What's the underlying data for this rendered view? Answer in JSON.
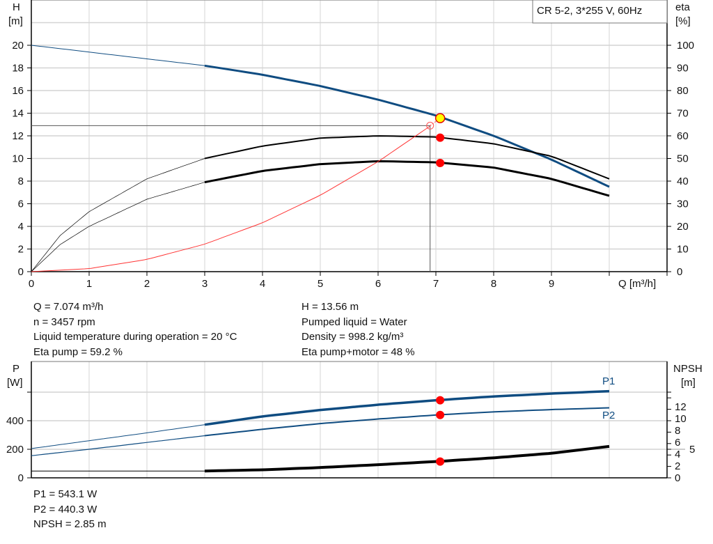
{
  "chart_data": [
    {
      "type": "line",
      "legend": "CR 5-2, 3*255 V, 60Hz",
      "xlabel": "Q [m³/h]",
      "ylabel_left": [
        "H",
        "[m]"
      ],
      "ylabel_right": [
        "eta",
        "[%]"
      ],
      "xlim": [
        0,
        11
      ],
      "ylim_left": [
        0,
        24
      ],
      "ylim_right": [
        0,
        120
      ],
      "xticks": [
        0,
        1,
        2,
        3,
        4,
        5,
        6,
        7,
        8,
        9
      ],
      "yticks_left": [
        0,
        2,
        4,
        6,
        8,
        10,
        12,
        14,
        16,
        18,
        20
      ],
      "yticks_right": [
        0,
        10,
        20,
        30,
        40,
        50,
        60,
        70,
        80,
        90,
        100
      ],
      "grid": true,
      "series": [
        {
          "key": "H",
          "axis": "left",
          "color": "#0f4c81",
          "x": [
            0,
            1,
            2,
            3,
            4,
            5,
            6,
            7,
            8,
            9,
            10
          ],
          "y": [
            20,
            19.4,
            18.8,
            18.2,
            17.4,
            16.4,
            15.2,
            13.8,
            12.0,
            9.9,
            7.5
          ]
        },
        {
          "key": "eta_pump",
          "axis": "right",
          "color": "#000000",
          "x": [
            0,
            0.5,
            1,
            2,
            3,
            4,
            5,
            6,
            7,
            8,
            9,
            10
          ],
          "y": [
            0,
            16,
            26.5,
            41,
            50,
            55.5,
            59,
            60,
            59.5,
            56.5,
            51,
            41
          ]
        },
        {
          "key": "eta_total",
          "axis": "right",
          "color": "#000000",
          "x": [
            0,
            0.5,
            1,
            2,
            3,
            4,
            5,
            6,
            7,
            8,
            9,
            10
          ],
          "y": [
            0,
            12,
            20,
            32,
            39.5,
            44.5,
            47.5,
            48.8,
            48.3,
            46,
            41,
            33.5
          ]
        },
        {
          "key": "system",
          "axis": "left",
          "color": "#ff3333",
          "x": [
            0,
            1,
            2,
            3,
            4,
            5,
            6,
            6.9
          ],
          "y": [
            0,
            0.27,
            1.08,
            2.43,
            4.32,
            6.75,
            9.72,
            12.86
          ]
        }
      ],
      "duty_point": {
        "q": 7.074,
        "h": 13.56,
        "eta_pump": 59.2,
        "eta_total": 48
      },
      "requested_point": {
        "q": 6.9,
        "h": 12.9
      }
    },
    {
      "type": "line",
      "ylabel_left": [
        "P",
        "[W]"
      ],
      "ylabel_right": [
        "NPSH",
        "[m]"
      ],
      "xlim": [
        0,
        11
      ],
      "ylim_left": [
        0,
        815
      ],
      "yticks_left": [
        0,
        200,
        400
      ],
      "yticks_right": [
        0,
        2,
        4,
        5,
        6,
        8,
        10,
        12
      ],
      "grid": true,
      "series": [
        {
          "key": "P1",
          "name": "P1",
          "axis": "left",
          "color": "#0f4c81",
          "x": [
            0,
            1,
            2,
            3,
            4,
            5,
            6,
            7,
            8,
            9,
            10
          ],
          "y": [
            205,
            260,
            315,
            372,
            430,
            475,
            512,
            543,
            570,
            590,
            607
          ]
        },
        {
          "key": "P2",
          "name": "P2",
          "axis": "left",
          "color": "#0f4c81",
          "x": [
            0,
            1,
            2,
            3,
            4,
            5,
            6,
            7,
            8,
            9,
            10
          ],
          "y": [
            155,
            200,
            248,
            295,
            340,
            380,
            412,
            440,
            462,
            478,
            490
          ]
        },
        {
          "key": "NPSH",
          "axis": "right",
          "color": "#000000",
          "x": [
            0,
            1,
            2,
            3,
            4,
            5,
            6,
            7,
            8,
            9,
            10
          ],
          "y": [
            1.2,
            1.2,
            1.2,
            1.2,
            1.4,
            1.8,
            2.3,
            2.85,
            3.5,
            4.3,
            5.5
          ]
        }
      ],
      "duty_point": {
        "q": 7.074,
        "p1": 543.1,
        "p2": 440.3,
        "npsh": 2.85
      }
    }
  ],
  "info": {
    "q": "Q = 7.074 m³/h",
    "n": "n = 3457 rpm",
    "temp": "Liquid temperature during operation = 20 °C",
    "eta_pump": "Eta pump = 59.2 %",
    "h": "H = 13.56 m",
    "liquid": "Pumped liquid = Water",
    "density": "Density = 998.2 kg/m³",
    "eta_total": "Eta pump+motor = 48 %",
    "p1": "P1 = 543.1 W",
    "p2": "P2 = 440.3 W",
    "npsh": "NPSH = 2.85 m"
  }
}
